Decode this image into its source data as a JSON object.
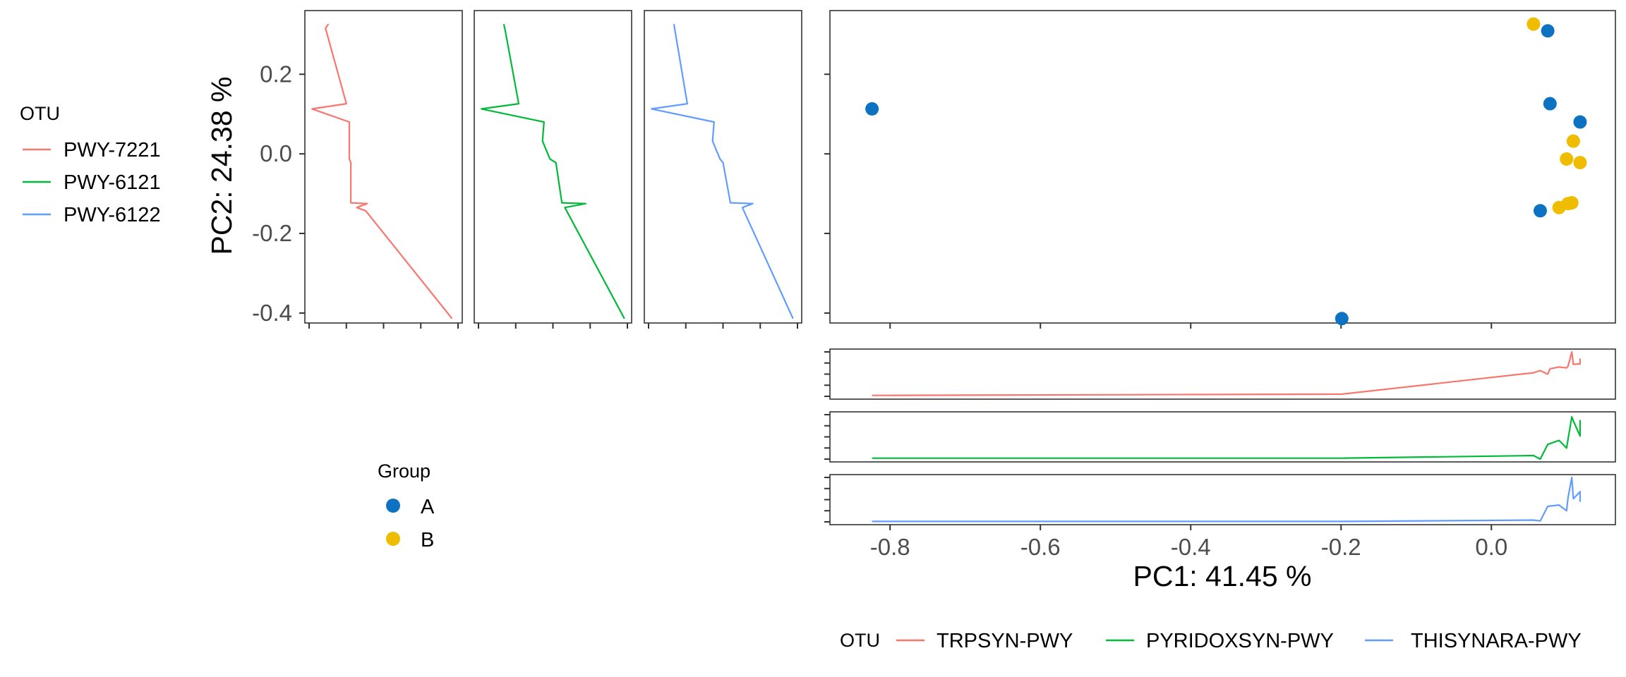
{
  "chart_data": {
    "type": "scatter",
    "main_plot": {
      "xlabel": "PC1: 41.45 %",
      "ylabel": "PC2: 24.38 %",
      "xlim": [
        -0.88,
        0.165
      ],
      "ylim": [
        -0.425,
        0.36
      ],
      "x_ticks": [
        -0.8,
        -0.6,
        -0.4,
        -0.2,
        0.0
      ],
      "x_tick_labels": [
        "-0.8",
        "-0.6",
        "-0.4",
        "-0.2",
        "0.0"
      ],
      "y_ticks": [
        -0.4,
        -0.2,
        0.0,
        0.2
      ],
      "y_tick_labels": [
        "-0.4",
        "-0.2",
        "0.0",
        "0.2"
      ],
      "grid": false,
      "points": [
        {
          "x": -0.824,
          "y": 0.113,
          "group": "A"
        },
        {
          "x": -0.199,
          "y": -0.414,
          "group": "A"
        },
        {
          "x": 0.075,
          "y": 0.309,
          "group": "A"
        },
        {
          "x": 0.078,
          "y": 0.126,
          "group": "A"
        },
        {
          "x": 0.118,
          "y": 0.08,
          "group": "A"
        },
        {
          "x": 0.065,
          "y": -0.143,
          "group": "A"
        },
        {
          "x": 0.056,
          "y": 0.326,
          "group": "B"
        },
        {
          "x": 0.109,
          "y": 0.032,
          "group": "B"
        },
        {
          "x": 0.1,
          "y": -0.013,
          "group": "B"
        },
        {
          "x": 0.118,
          "y": -0.022,
          "group": "B"
        },
        {
          "x": 0.107,
          "y": -0.123,
          "group": "B"
        },
        {
          "x": 0.102,
          "y": -0.125,
          "group": "B"
        },
        {
          "x": 0.09,
          "y": -0.135,
          "group": "B"
        }
      ]
    },
    "y_side_panels": [
      {
        "otu": "PWY-7221",
        "xlim": [
          0,
          1
        ],
        "points": [
          {
            "y": 0.326,
            "x": 0.13
          },
          {
            "y": 0.316,
            "x": 0.11
          },
          {
            "y": 0.126,
            "x": 0.25
          },
          {
            "y": 0.113,
            "x": 0.02
          },
          {
            "y": 0.08,
            "x": 0.27
          },
          {
            "y": -0.013,
            "x": 0.27
          },
          {
            "y": -0.022,
            "x": 0.28
          },
          {
            "y": -0.123,
            "x": 0.28
          },
          {
            "y": -0.125,
            "x": 0.39
          },
          {
            "y": -0.135,
            "x": 0.32
          },
          {
            "y": -0.143,
            "x": 0.38
          },
          {
            "y": -0.414,
            "x": 0.96
          }
        ]
      },
      {
        "otu": "PWY-6121",
        "xlim": [
          0,
          1
        ],
        "points": [
          {
            "y": 0.326,
            "x": 0.17
          },
          {
            "y": 0.309,
            "x": 0.18
          },
          {
            "y": 0.126,
            "x": 0.27
          },
          {
            "y": 0.113,
            "x": 0.02
          },
          {
            "y": 0.08,
            "x": 0.44
          },
          {
            "y": 0.032,
            "x": 0.43
          },
          {
            "y": -0.013,
            "x": 0.48
          },
          {
            "y": -0.022,
            "x": 0.52
          },
          {
            "y": -0.123,
            "x": 0.56
          },
          {
            "y": -0.125,
            "x": 0.72
          },
          {
            "y": -0.135,
            "x": 0.58
          },
          {
            "y": -0.414,
            "x": 0.98
          }
        ]
      },
      {
        "otu": "PWY-6122",
        "xlim": [
          0,
          1
        ],
        "points": [
          {
            "y": 0.326,
            "x": 0.17
          },
          {
            "y": 0.126,
            "x": 0.26
          },
          {
            "y": 0.113,
            "x": 0.02
          },
          {
            "y": 0.08,
            "x": 0.44
          },
          {
            "y": 0.032,
            "x": 0.43
          },
          {
            "y": -0.013,
            "x": 0.48
          },
          {
            "y": -0.022,
            "x": 0.5
          },
          {
            "y": -0.123,
            "x": 0.55
          },
          {
            "y": -0.125,
            "x": 0.7
          },
          {
            "y": -0.135,
            "x": 0.63
          },
          {
            "y": -0.414,
            "x": 0.97
          }
        ]
      }
    ],
    "x_side_panels": [
      {
        "otu": "TRPSYN-PWY",
        "ylim": [
          0,
          1
        ],
        "points": [
          {
            "x": -0.824,
            "y": 0.02
          },
          {
            "x": -0.199,
            "y": 0.05
          },
          {
            "x": 0.056,
            "y": 0.53
          },
          {
            "x": 0.065,
            "y": 0.58
          },
          {
            "x": 0.075,
            "y": 0.5
          },
          {
            "x": 0.078,
            "y": 0.62
          },
          {
            "x": 0.09,
            "y": 0.66
          },
          {
            "x": 0.1,
            "y": 0.64
          },
          {
            "x": 0.102,
            "y": 0.68
          },
          {
            "x": 0.107,
            "y": 1.0
          },
          {
            "x": 0.109,
            "y": 0.72
          },
          {
            "x": 0.118,
            "y": 0.73
          },
          {
            "x": 0.118,
            "y": 0.85
          }
        ]
      },
      {
        "otu": "PYRIDOXSYN-PWY",
        "ylim": [
          0,
          1
        ],
        "points": [
          {
            "x": -0.824,
            "y": 0.02
          },
          {
            "x": -0.199,
            "y": 0.02
          },
          {
            "x": 0.056,
            "y": 0.08
          },
          {
            "x": 0.065,
            "y": 0.0
          },
          {
            "x": 0.075,
            "y": 0.33
          },
          {
            "x": 0.09,
            "y": 0.42
          },
          {
            "x": 0.1,
            "y": 0.25
          },
          {
            "x": 0.107,
            "y": 0.95
          },
          {
            "x": 0.109,
            "y": 0.86
          },
          {
            "x": 0.118,
            "y": 0.52
          },
          {
            "x": 0.118,
            "y": 0.88
          }
        ]
      },
      {
        "otu": "THISYNARA-PWY",
        "ylim": [
          0,
          1
        ],
        "points": [
          {
            "x": -0.824,
            "y": 0.01
          },
          {
            "x": -0.199,
            "y": 0.01
          },
          {
            "x": 0.056,
            "y": 0.04
          },
          {
            "x": 0.065,
            "y": 0.02
          },
          {
            "x": 0.075,
            "y": 0.35
          },
          {
            "x": 0.09,
            "y": 0.38
          },
          {
            "x": 0.1,
            "y": 0.25
          },
          {
            "x": 0.102,
            "y": 0.55
          },
          {
            "x": 0.107,
            "y": 1.0
          },
          {
            "x": 0.109,
            "y": 0.52
          },
          {
            "x": 0.118,
            "y": 0.68
          },
          {
            "x": 0.118,
            "y": 0.45
          }
        ]
      }
    ],
    "legends": {
      "otu_left": {
        "title": "OTU",
        "entries": [
          "PWY-7221",
          "PWY-6121",
          "PWY-6122"
        ],
        "placement": "left"
      },
      "group": {
        "title": "Group",
        "entries": [
          "A",
          "B"
        ],
        "placement": "bottom-left"
      },
      "otu_bottom": {
        "title": "OTU",
        "entries": [
          "TRPSYN-PWY",
          "PYRIDOXSYN-PWY",
          "THISYNARA-PWY"
        ],
        "placement": "bottom"
      }
    },
    "colors": {
      "group_A": "#0e72c3",
      "group_B": "#f0bc00",
      "otu_1": "#f8766d",
      "otu_2": "#00ba38",
      "otu_3": "#619cff"
    }
  }
}
